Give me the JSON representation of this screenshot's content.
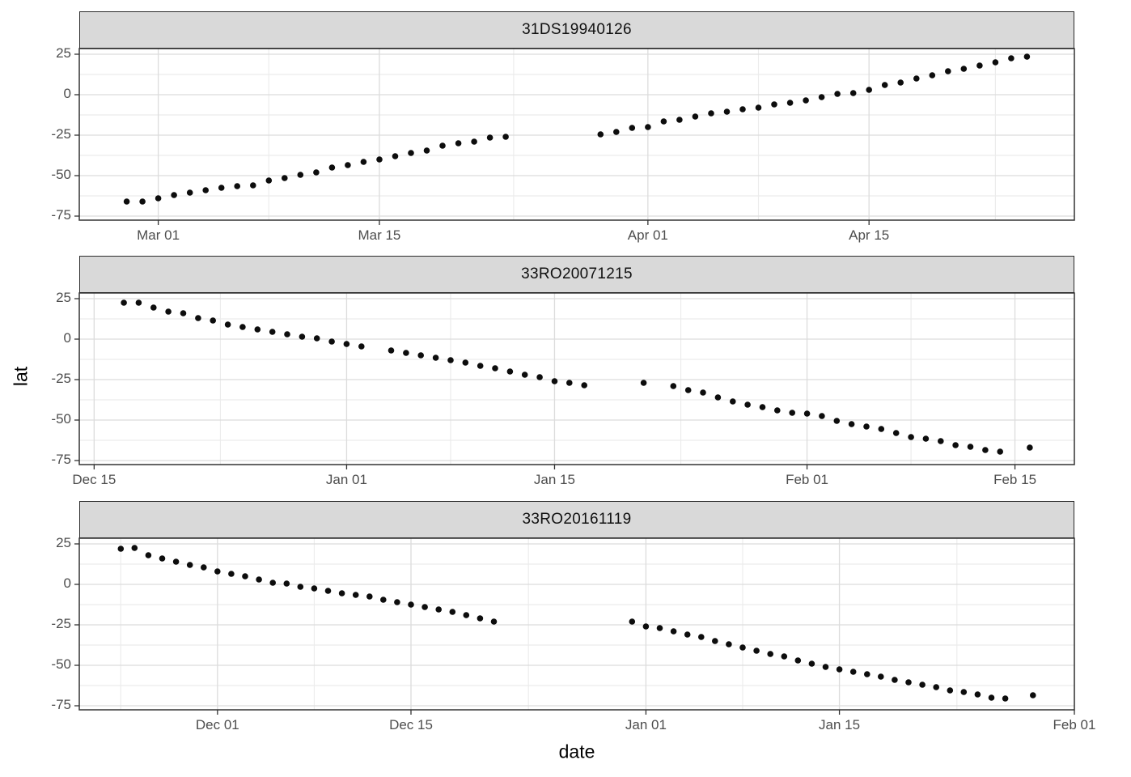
{
  "figure": {
    "y_axis_title": "lat",
    "x_axis_title": "date"
  },
  "style": {
    "strip_background": "#d9d9d9",
    "strip_border": "#2b2b2b",
    "panel_border": "#333333",
    "grid_major": "#dcdcdc",
    "grid_minor": "#ececec",
    "point_color": "#0d0d0d",
    "axis_text_color": "#4d4d4d",
    "axis_title_color": "#000000"
  },
  "chart_data": {
    "type": "scatter",
    "title": "",
    "xlabel": "date",
    "ylabel": "lat",
    "grid": true,
    "legend": false,
    "ylim": [
      -77.5,
      28.5
    ],
    "y_ticks": {
      "values": [
        25,
        0,
        -25,
        -50,
        -75
      ],
      "labels": [
        "25",
        "0",
        "-25",
        "-50",
        "-75"
      ],
      "minor_values": [
        12.5,
        -12.5,
        -37.5,
        -62.5
      ]
    },
    "facets": [
      {
        "title": "31DS19940126",
        "x_domain": [
          "1994-02-24",
          "1994-04-28"
        ],
        "x_ticks": [
          {
            "label": "Mar 01",
            "date": "1994-03-01"
          },
          {
            "label": "Mar 15",
            "date": "1994-03-15"
          },
          {
            "label": "Apr 01",
            "date": "1994-04-01"
          },
          {
            "label": "Apr 15",
            "date": "1994-04-15"
          }
        ],
        "x_minor": [
          "1994-03-08",
          "1994-03-23T12:00",
          "1994-04-08",
          "1994-04-23"
        ],
        "points": [
          [
            "1994-02-27",
            -66
          ],
          [
            "1994-02-28",
            -66
          ],
          [
            "1994-03-01",
            -64
          ],
          [
            "1994-03-02",
            -62
          ],
          [
            "1994-03-03",
            -60.5
          ],
          [
            "1994-03-04",
            -59
          ],
          [
            "1994-03-05",
            -57.5
          ],
          [
            "1994-03-06",
            -56.5
          ],
          [
            "1994-03-07",
            -56
          ],
          [
            "1994-03-08",
            -53
          ],
          [
            "1994-03-09",
            -51.5
          ],
          [
            "1994-03-10",
            -49.5
          ],
          [
            "1994-03-11",
            -48
          ],
          [
            "1994-03-12",
            -45
          ],
          [
            "1994-03-13",
            -43.5
          ],
          [
            "1994-03-14",
            -41.5
          ],
          [
            "1994-03-15",
            -40
          ],
          [
            "1994-03-16",
            -38
          ],
          [
            "1994-03-17",
            -36
          ],
          [
            "1994-03-18",
            -34.5
          ],
          [
            "1994-03-19",
            -31.5
          ],
          [
            "1994-03-20",
            -30
          ],
          [
            "1994-03-21",
            -29
          ],
          [
            "1994-03-22",
            -26.5
          ],
          [
            "1994-03-23",
            -26
          ],
          [
            "1994-03-29",
            -24.5
          ],
          [
            "1994-03-30",
            -23
          ],
          [
            "1994-03-31",
            -20.5
          ],
          [
            "1994-04-01",
            -20
          ],
          [
            "1994-04-02",
            -16.5
          ],
          [
            "1994-04-03",
            -15.5
          ],
          [
            "1994-04-04",
            -13.5
          ],
          [
            "1994-04-05",
            -11.5
          ],
          [
            "1994-04-06",
            -10.5
          ],
          [
            "1994-04-07",
            -9
          ],
          [
            "1994-04-08",
            -8
          ],
          [
            "1994-04-09",
            -6
          ],
          [
            "1994-04-10",
            -5
          ],
          [
            "1994-04-11",
            -3.5
          ],
          [
            "1994-04-12",
            -1.5
          ],
          [
            "1994-04-13",
            0.5
          ],
          [
            "1994-04-14",
            1
          ],
          [
            "1994-04-15",
            3
          ],
          [
            "1994-04-16",
            6
          ],
          [
            "1994-04-17",
            7.5
          ],
          [
            "1994-04-18",
            10
          ],
          [
            "1994-04-19",
            12
          ],
          [
            "1994-04-20",
            14.5
          ],
          [
            "1994-04-21",
            16
          ],
          [
            "1994-04-22",
            18
          ],
          [
            "1994-04-23",
            20
          ],
          [
            "1994-04-24",
            22.5
          ],
          [
            "1994-04-25",
            23.5
          ]
        ]
      },
      {
        "title": "33RO20071215",
        "x_domain": [
          "2007-12-14",
          "2008-02-19"
        ],
        "x_ticks": [
          {
            "label": "Dec 15",
            "date": "2007-12-15"
          },
          {
            "label": "Jan 01",
            "date": "2008-01-01"
          },
          {
            "label": "Jan 15",
            "date": "2008-01-15"
          },
          {
            "label": "Feb 01",
            "date": "2008-02-01"
          },
          {
            "label": "Feb 15",
            "date": "2008-02-15"
          }
        ],
        "x_minor": [
          "2007-12-23T12:00",
          "2008-01-08",
          "2008-01-23T12:00",
          "2008-02-08"
        ],
        "points": [
          [
            "2007-12-17",
            22.5
          ],
          [
            "2007-12-18",
            22.5
          ],
          [
            "2007-12-19",
            19.5
          ],
          [
            "2007-12-20",
            17
          ],
          [
            "2007-12-21",
            16
          ],
          [
            "2007-12-22",
            13
          ],
          [
            "2007-12-23",
            11.5
          ],
          [
            "2007-12-24",
            9
          ],
          [
            "2007-12-25",
            7.5
          ],
          [
            "2007-12-26",
            6
          ],
          [
            "2007-12-27",
            4.5
          ],
          [
            "2007-12-28",
            3
          ],
          [
            "2007-12-29",
            1.5
          ],
          [
            "2007-12-30",
            0.5
          ],
          [
            "2007-12-31",
            -1.5
          ],
          [
            "2008-01-01",
            -3
          ],
          [
            "2008-01-02",
            -4.5
          ],
          [
            "2008-01-04",
            -7
          ],
          [
            "2008-01-05",
            -8.5
          ],
          [
            "2008-01-06",
            -10
          ],
          [
            "2008-01-07",
            -11.5
          ],
          [
            "2008-01-08",
            -13
          ],
          [
            "2008-01-09",
            -14.5
          ],
          [
            "2008-01-10",
            -16.5
          ],
          [
            "2008-01-11",
            -18
          ],
          [
            "2008-01-12",
            -20
          ],
          [
            "2008-01-13",
            -22
          ],
          [
            "2008-01-14",
            -23.5
          ],
          [
            "2008-01-15",
            -26
          ],
          [
            "2008-01-16",
            -27
          ],
          [
            "2008-01-17",
            -28.5
          ],
          [
            "2008-01-21",
            -27
          ],
          [
            "2008-01-23",
            -29
          ],
          [
            "2008-01-24",
            -31.5
          ],
          [
            "2008-01-25",
            -33
          ],
          [
            "2008-01-26",
            -36
          ],
          [
            "2008-01-27",
            -38.5
          ],
          [
            "2008-01-28",
            -40.5
          ],
          [
            "2008-01-29",
            -42
          ],
          [
            "2008-01-30",
            -44
          ],
          [
            "2008-01-31",
            -45.5
          ],
          [
            "2008-02-01",
            -46
          ],
          [
            "2008-02-02",
            -47.5
          ],
          [
            "2008-02-03",
            -50.5
          ],
          [
            "2008-02-04",
            -52.5
          ],
          [
            "2008-02-05",
            -54
          ],
          [
            "2008-02-06",
            -55.5
          ],
          [
            "2008-02-07",
            -58
          ],
          [
            "2008-02-08",
            -60.5
          ],
          [
            "2008-02-09",
            -61.5
          ],
          [
            "2008-02-10",
            -63
          ],
          [
            "2008-02-11",
            -65.5
          ],
          [
            "2008-02-12",
            -66.5
          ],
          [
            "2008-02-13",
            -68.5
          ],
          [
            "2008-02-14",
            -69.5
          ],
          [
            "2008-02-16",
            -67
          ]
        ]
      },
      {
        "title": "33RO20161119",
        "x_domain": [
          "2016-11-21",
          "2017-02-01"
        ],
        "x_ticks": [
          {
            "label": "Dec 01",
            "date": "2016-12-01"
          },
          {
            "label": "Dec 15",
            "date": "2016-12-15"
          },
          {
            "label": "Jan 01",
            "date": "2017-01-01"
          },
          {
            "label": "Jan 15",
            "date": "2017-01-15"
          },
          {
            "label": "Feb 01",
            "date": "2017-02-01"
          }
        ],
        "x_minor": [
          "2016-11-24",
          "2016-12-08",
          "2016-12-23T12:00",
          "2017-01-08",
          "2017-01-23T12:00"
        ],
        "points": [
          [
            "2016-11-24",
            22
          ],
          [
            "2016-11-25",
            22.5
          ],
          [
            "2016-11-26",
            18
          ],
          [
            "2016-11-27",
            16
          ],
          [
            "2016-11-28",
            14
          ],
          [
            "2016-11-29",
            12
          ],
          [
            "2016-11-30",
            10.5
          ],
          [
            "2016-12-01",
            8
          ],
          [
            "2016-12-02",
            6.5
          ],
          [
            "2016-12-03",
            5
          ],
          [
            "2016-12-04",
            3
          ],
          [
            "2016-12-05",
            1
          ],
          [
            "2016-12-06",
            0.5
          ],
          [
            "2016-12-07",
            -1.5
          ],
          [
            "2016-12-08",
            -2.5
          ],
          [
            "2016-12-09",
            -4
          ],
          [
            "2016-12-10",
            -5.5
          ],
          [
            "2016-12-11",
            -6.5
          ],
          [
            "2016-12-12",
            -7.5
          ],
          [
            "2016-12-13",
            -9.5
          ],
          [
            "2016-12-14",
            -11
          ],
          [
            "2016-12-15",
            -12.5
          ],
          [
            "2016-12-16",
            -14
          ],
          [
            "2016-12-17",
            -15.5
          ],
          [
            "2016-12-18",
            -17
          ],
          [
            "2016-12-19",
            -19
          ],
          [
            "2016-12-20",
            -21
          ],
          [
            "2016-12-21",
            -23
          ],
          [
            "2016-12-31",
            -23
          ],
          [
            "2017-01-01",
            -26
          ],
          [
            "2017-01-02",
            -27
          ],
          [
            "2017-01-03",
            -29
          ],
          [
            "2017-01-04",
            -31
          ],
          [
            "2017-01-05",
            -32.5
          ],
          [
            "2017-01-06",
            -35
          ],
          [
            "2017-01-07",
            -37
          ],
          [
            "2017-01-08",
            -39
          ],
          [
            "2017-01-09",
            -41
          ],
          [
            "2017-01-10",
            -43
          ],
          [
            "2017-01-11",
            -44.5
          ],
          [
            "2017-01-12",
            -47
          ],
          [
            "2017-01-13",
            -49
          ],
          [
            "2017-01-14",
            -51
          ],
          [
            "2017-01-15",
            -52.5
          ],
          [
            "2017-01-16",
            -54
          ],
          [
            "2017-01-17",
            -55.5
          ],
          [
            "2017-01-18",
            -57
          ],
          [
            "2017-01-19",
            -59
          ],
          [
            "2017-01-20",
            -60.5
          ],
          [
            "2017-01-21",
            -62
          ],
          [
            "2017-01-22",
            -63.5
          ],
          [
            "2017-01-23",
            -65.5
          ],
          [
            "2017-01-24",
            -66.5
          ],
          [
            "2017-01-25",
            -68
          ],
          [
            "2017-01-26",
            -70
          ],
          [
            "2017-01-27",
            -70.5
          ],
          [
            "2017-01-29",
            -68.5
          ]
        ]
      }
    ]
  }
}
